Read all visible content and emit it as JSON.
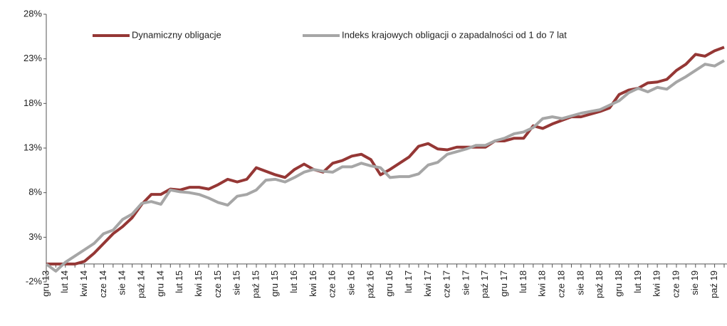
{
  "chart_data": {
    "type": "line",
    "categories": [
      "gru 13",
      null,
      "lut 14",
      null,
      "kwi 14",
      null,
      "cze 14",
      null,
      "sie 14",
      null,
      "paź 14",
      null,
      "gru 14",
      null,
      "lut 15",
      null,
      "kwi 15",
      null,
      "cze 15",
      null,
      "sie 15",
      null,
      "paź 15",
      null,
      "gru 15",
      null,
      "lut 16",
      null,
      "kwi 16",
      null,
      "cze 16",
      null,
      "sie 16",
      null,
      "paź 16",
      null,
      "gru 16",
      null,
      "lut 17",
      null,
      "kwi 17",
      null,
      "cze 17",
      null,
      "sie 17",
      null,
      "paź 17",
      null,
      "gru 17",
      null,
      "lut 18",
      null,
      "kwi 18",
      null,
      "cze 18",
      null,
      "sie 18",
      null,
      "paź 18",
      null,
      "gru 18",
      null,
      "lut 19",
      null,
      "kwi 19",
      null,
      "cze 19",
      null,
      "sie 19",
      null,
      "paź 19",
      null
    ],
    "series": [
      {
        "name": "Dynamiczny obligacje",
        "color": "#953735",
        "values": [
          0,
          0,
          0,
          0,
          0.3,
          1.2,
          2.3,
          3.4,
          4.2,
          5.2,
          6.7,
          7.8,
          7.8,
          8.4,
          8.3,
          8.6,
          8.6,
          8.4,
          8.9,
          9.5,
          9.2,
          9.5,
          10.8,
          10.4,
          10.0,
          9.7,
          10.6,
          11.2,
          10.6,
          10.3,
          11.3,
          11.6,
          12.1,
          12.3,
          11.7,
          10.0,
          10.6,
          11.3,
          12.0,
          13.2,
          13.5,
          12.9,
          12.8,
          13.1,
          13.1,
          13.1,
          13.1,
          13.8,
          13.8,
          14.1,
          14.1,
          15.5,
          15.2,
          15.7,
          16.1,
          16.5,
          16.5,
          16.8,
          17.1,
          17.5,
          19.0,
          19.5,
          19.7,
          20.3,
          20.4,
          20.7,
          21.7,
          22.4,
          23.5,
          23.3,
          23.9,
          24.3
        ]
      },
      {
        "name": "Indeks krajowych obligacji o zapadalności od 1 do 7 lat",
        "color": "#a6a6a6",
        "values": [
          0,
          -0.8,
          0.2,
          0.9,
          1.6,
          2.3,
          3.4,
          3.8,
          5.0,
          5.6,
          6.8,
          7.0,
          6.7,
          8.3,
          8.1,
          8.0,
          7.8,
          7.4,
          6.9,
          6.6,
          7.6,
          7.8,
          8.3,
          9.4,
          9.5,
          9.2,
          9.7,
          10.3,
          10.6,
          10.4,
          10.3,
          10.9,
          10.9,
          11.3,
          11.0,
          10.8,
          9.7,
          9.8,
          9.8,
          10.1,
          11.1,
          11.4,
          12.3,
          12.6,
          12.9,
          13.3,
          13.3,
          13.8,
          14.1,
          14.6,
          14.8,
          15.3,
          16.3,
          16.5,
          16.3,
          16.6,
          16.9,
          17.1,
          17.3,
          17.8,
          18.3,
          19.2,
          19.7,
          19.3,
          19.8,
          19.6,
          20.4,
          21.0,
          21.7,
          22.4,
          22.2,
          22.8
        ]
      }
    ],
    "ylim": [
      -2,
      28
    ],
    "yticks": [
      {
        "value": -2,
        "label": "-2%"
      },
      {
        "value": 3,
        "label": "3%"
      },
      {
        "value": 8,
        "label": "8%"
      },
      {
        "value": 13,
        "label": "13%"
      },
      {
        "value": 18,
        "label": "18%"
      },
      {
        "value": 23,
        "label": "23%"
      },
      {
        "value": 28,
        "label": "28%"
      }
    ],
    "grid": false,
    "legend": "top"
  }
}
